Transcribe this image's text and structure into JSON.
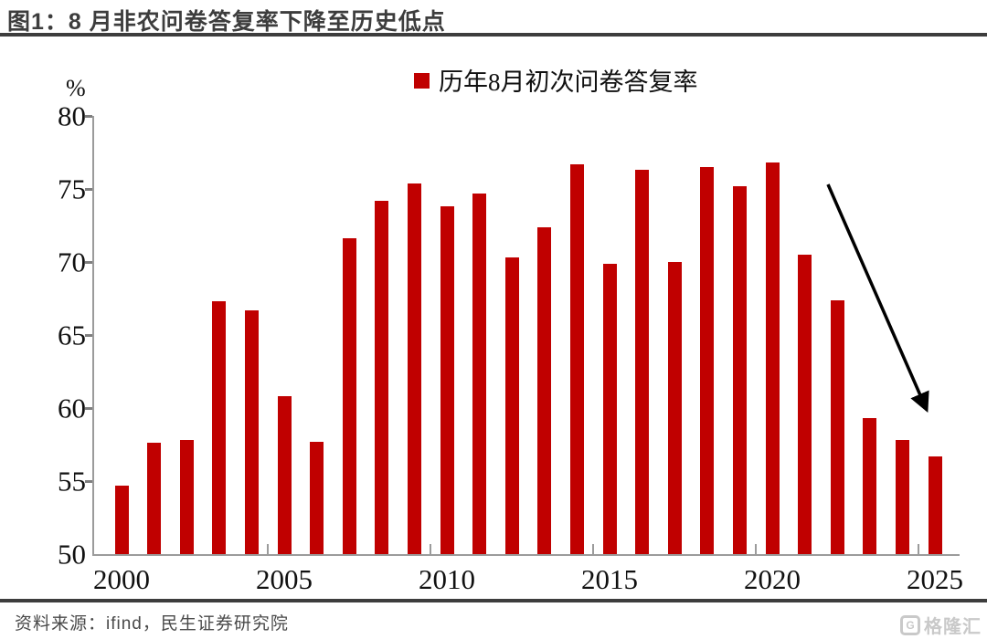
{
  "header": {
    "title": "图1：8 月非农问卷答复率下降至历史低点"
  },
  "chart_data": {
    "type": "bar",
    "title": "历年8月初次问卷答复率",
    "legend_entries": [
      "历年8月初次问卷答复率"
    ],
    "legend_position": "top-center",
    "unit_label": "%",
    "categories": [
      2000,
      2001,
      2002,
      2003,
      2004,
      2005,
      2006,
      2007,
      2008,
      2009,
      2010,
      2011,
      2012,
      2013,
      2014,
      2015,
      2016,
      2017,
      2018,
      2019,
      2020,
      2021,
      2022,
      2023,
      2024,
      2025
    ],
    "values": [
      54.7,
      57.6,
      57.8,
      67.3,
      66.7,
      60.8,
      57.7,
      71.6,
      74.2,
      75.4,
      73.8,
      74.7,
      70.3,
      72.4,
      76.7,
      69.9,
      76.3,
      70.0,
      76.5,
      75.2,
      76.8,
      70.5,
      67.4,
      59.3,
      57.8,
      56.7
    ],
    "ylim": [
      50,
      80
    ],
    "yticks": [
      80,
      75,
      70,
      65,
      60,
      55,
      50
    ],
    "xtick_labels": [
      "2000",
      "2005",
      "2010",
      "2015",
      "2020",
      "2025"
    ],
    "grid": false,
    "bar_color": "#C00000",
    "axis_color": "#9b9b9b",
    "annotation": {
      "type": "arrow",
      "meaning": "decline-to-historic-low",
      "color": "#000000",
      "from": {
        "year": 2021.8,
        "value": 75.3
      },
      "to": {
        "year": 2024.9,
        "value": 59.0
      }
    }
  },
  "footer": {
    "source": "资料来源：ifind，民生证券研究院",
    "logo": "格隆汇"
  }
}
